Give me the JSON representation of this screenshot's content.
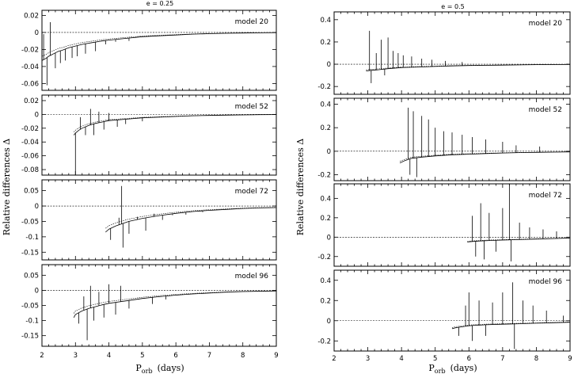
{
  "chart_data": [
    {
      "type": "line",
      "column_title": "e = 0.25",
      "xlabel_main": "P",
      "xlabel_sub": "orb",
      "xlabel_unit": "(days)",
      "ylabel": "Relative differences Δ",
      "xlim": [
        2,
        9
      ],
      "xticks": [
        2,
        3,
        4,
        5,
        6,
        7,
        8,
        9
      ],
      "panels": [
        {
          "model": "model 20",
          "ylim": [
            -0.068,
            0.026
          ],
          "yticks": [
            -0.06,
            -0.04,
            -0.02,
            0,
            0.02
          ],
          "ytick_labels": [
            "-0.06",
            "-0.04",
            "-0.02",
            "0",
            "0.02"
          ],
          "ref": 0,
          "series": {
            "x": [
              2.0,
              2.1,
              2.2,
              2.3,
              2.4,
              2.5,
              2.6,
              2.8,
              3.0,
              3.2,
              3.5,
              3.8,
              4.0,
              4.5,
              5.0,
              5.5,
              6.0,
              6.5,
              7.0,
              7.5,
              8.0,
              8.5,
              9.0
            ],
            "y": [
              -0.033,
              -0.031,
              -0.028,
              -0.026,
              -0.024,
              -0.022,
              -0.021,
              -0.018,
              -0.016,
              -0.014,
              -0.012,
              -0.01,
              -0.009,
              -0.007,
              -0.005,
              -0.004,
              -0.003,
              -0.002,
              -0.0015,
              -0.001,
              -0.0007,
              -0.0004,
              -0.0002
            ]
          },
          "spikes": [
            [
              2.05,
              -0.002
            ],
            [
              2.15,
              -0.062
            ],
            [
              2.25,
              0.012
            ],
            [
              2.4,
              -0.042
            ],
            [
              2.55,
              -0.036
            ],
            [
              2.7,
              -0.033
            ],
            [
              2.9,
              -0.03
            ],
            [
              3.05,
              -0.028
            ],
            [
              3.3,
              -0.025
            ],
            [
              3.6,
              -0.022
            ],
            [
              3.9,
              -0.014
            ],
            [
              4.2,
              -0.011
            ],
            [
              4.6,
              -0.01
            ]
          ]
        },
        {
          "model": "model 52",
          "ylim": [
            -0.088,
            0.028
          ],
          "yticks": [
            -0.08,
            -0.06,
            -0.04,
            -0.02,
            0,
            0.02
          ],
          "ytick_labels": [
            "-0.08",
            "-0.06",
            "-0.04",
            "-0.02",
            "0",
            "0.02"
          ],
          "ref": 0,
          "series": {
            "x": [
              2.95,
              3.0,
              3.1,
              3.2,
              3.4,
              3.6,
              3.8,
              4.0,
              4.5,
              5.0,
              5.5,
              6.0,
              6.5,
              7.0,
              7.5,
              8.0,
              8.5,
              9.0
            ],
            "y": [
              -0.03,
              -0.027,
              -0.023,
              -0.02,
              -0.016,
              -0.013,
              -0.011,
              -0.009,
              -0.007,
              -0.005,
              -0.004,
              -0.003,
              -0.002,
              -0.0015,
              -0.001,
              -0.0007,
              -0.0004,
              -0.0002
            ]
          },
          "spikes": [
            [
              3.0,
              -0.088
            ],
            [
              3.15,
              -0.004
            ],
            [
              3.3,
              -0.03
            ],
            [
              3.45,
              0.008
            ],
            [
              3.55,
              -0.03
            ],
            [
              3.7,
              0.004
            ],
            [
              3.85,
              -0.022
            ],
            [
              4.0,
              0.002
            ],
            [
              4.25,
              -0.018
            ],
            [
              4.5,
              -0.014
            ],
            [
              5.0,
              -0.01
            ]
          ]
        },
        {
          "model": "model 72",
          "ylim": [
            -0.175,
            0.085
          ],
          "yticks": [
            -0.15,
            -0.1,
            -0.05,
            0,
            0.05
          ],
          "ytick_labels": [
            "-0.15",
            "-0.1",
            "-0.05",
            "0",
            "0.05"
          ],
          "ref": 0,
          "series": {
            "x": [
              3.9,
              4.0,
              4.2,
              4.4,
              4.6,
              5.0,
              5.5,
              6.0,
              6.5,
              7.0,
              7.5,
              8.0,
              8.5,
              9.0
            ],
            "y": [
              -0.085,
              -0.075,
              -0.065,
              -0.057,
              -0.05,
              -0.04,
              -0.031,
              -0.024,
              -0.018,
              -0.014,
              -0.011,
              -0.008,
              -0.006,
              -0.005
            ]
          },
          "spikes": [
            [
              4.05,
              -0.11
            ],
            [
              4.3,
              -0.038
            ],
            [
              4.38,
              0.065
            ],
            [
              4.42,
              -0.135
            ],
            [
              4.6,
              -0.09
            ],
            [
              4.85,
              -0.035
            ],
            [
              5.1,
              -0.08
            ],
            [
              5.35,
              -0.025
            ],
            [
              5.6,
              -0.045
            ],
            [
              5.9,
              -0.03
            ],
            [
              6.3,
              -0.028
            ],
            [
              6.8,
              -0.02
            ]
          ]
        },
        {
          "model": "model 96",
          "ylim": [
            -0.185,
            0.085
          ],
          "yticks": [
            -0.15,
            -0.1,
            -0.05,
            0,
            0.05
          ],
          "ytick_labels": [
            "-0.15",
            "-0.1",
            "-0.05",
            "0",
            "0.05"
          ],
          "ref": 0,
          "series": {
            "x": [
              2.95,
              3.0,
              3.2,
              3.4,
              3.6,
              3.8,
              4.0,
              4.5,
              5.0,
              5.5,
              6.0,
              6.5,
              7.0,
              7.5,
              8.0,
              8.5,
              9.0
            ],
            "y": [
              -0.09,
              -0.08,
              -0.068,
              -0.06,
              -0.054,
              -0.048,
              -0.043,
              -0.035,
              -0.027,
              -0.021,
              -0.016,
              -0.012,
              -0.009,
              -0.006,
              -0.004,
              -0.003,
              -0.002
            ]
          },
          "spikes": [
            [
              3.1,
              -0.11
            ],
            [
              3.25,
              -0.02
            ],
            [
              3.35,
              -0.165
            ],
            [
              3.45,
              0.015
            ],
            [
              3.55,
              -0.1
            ],
            [
              3.7,
              -0.005
            ],
            [
              3.85,
              -0.09
            ],
            [
              4.0,
              0.02
            ],
            [
              4.2,
              -0.08
            ],
            [
              4.35,
              0.015
            ],
            [
              4.6,
              -0.06
            ],
            [
              4.9,
              -0.03
            ],
            [
              5.3,
              -0.045
            ],
            [
              5.7,
              -0.03
            ]
          ]
        }
      ]
    },
    {
      "type": "line",
      "column_title": "e = 0.5",
      "xlabel_main": "P",
      "xlabel_sub": "orb",
      "xlabel_unit": "(days)",
      "ylabel": "Relative differences Δ",
      "xlim": [
        2,
        9
      ],
      "xticks": [
        2,
        3,
        4,
        5,
        6,
        7,
        8,
        9
      ],
      "panels": [
        {
          "model": "model 20",
          "ylim": [
            -0.27,
            0.47
          ],
          "yticks": [
            -0.2,
            0,
            0.2,
            0.4
          ],
          "ytick_labels": [
            "-0.2",
            "0",
            "0.2",
            "0.4"
          ],
          "ref": 0,
          "series": {
            "x": [
              2.95,
              3.1,
              3.3,
              3.6,
              4.0,
              4.5,
              5.0,
              5.5,
              6.0,
              6.5,
              7.0,
              7.5,
              8.0,
              8.5,
              9.0
            ],
            "y": [
              -0.06,
              -0.055,
              -0.05,
              -0.04,
              -0.03,
              -0.025,
              -0.02,
              -0.015,
              -0.012,
              -0.01,
              -0.008,
              -0.006,
              -0.004,
              -0.003,
              -0.002
            ]
          },
          "spikes": [
            [
              3.05,
              0.3
            ],
            [
              3.1,
              -0.17
            ],
            [
              3.25,
              0.1
            ],
            [
              3.4,
              0.22
            ],
            [
              3.5,
              -0.1
            ],
            [
              3.6,
              0.24
            ],
            [
              3.75,
              0.12
            ],
            [
              3.9,
              0.1
            ],
            [
              4.05,
              0.08
            ],
            [
              4.3,
              0.07
            ],
            [
              4.6,
              0.05
            ],
            [
              4.9,
              0.04
            ],
            [
              5.3,
              0.03
            ],
            [
              5.8,
              0.02
            ]
          ]
        },
        {
          "model": "model 52",
          "ylim": [
            -0.25,
            0.45
          ],
          "yticks": [
            -0.2,
            0,
            0.2,
            0.4
          ],
          "ytick_labels": [
            "-0.2",
            "0",
            "0.2",
            "0.4"
          ],
          "ref": 0,
          "series": {
            "x": [
              3.95,
              4.1,
              4.3,
              4.6,
              5.0,
              5.5,
              6.0,
              6.5,
              7.0,
              7.5,
              8.0,
              8.5,
              9.0
            ],
            "y": [
              -0.1,
              -0.08,
              -0.06,
              -0.05,
              -0.04,
              -0.03,
              -0.025,
              -0.02,
              -0.015,
              -0.012,
              -0.01,
              -0.008,
              -0.006
            ]
          },
          "spikes": [
            [
              4.2,
              0.37
            ],
            [
              4.25,
              -0.2
            ],
            [
              4.35,
              0.34
            ],
            [
              4.45,
              -0.22
            ],
            [
              4.6,
              0.3
            ],
            [
              4.8,
              0.27
            ],
            [
              5.0,
              0.2
            ],
            [
              5.25,
              0.17
            ],
            [
              5.5,
              0.16
            ],
            [
              5.8,
              0.14
            ],
            [
              6.1,
              0.12
            ],
            [
              6.5,
              0.1
            ],
            [
              7.0,
              0.08
            ],
            [
              7.4,
              0.05
            ],
            [
              8.1,
              0.04
            ]
          ]
        },
        {
          "model": "model 72",
          "ylim": [
            -0.3,
            0.55
          ],
          "yticks": [
            -0.2,
            0,
            0.2,
            0.4
          ],
          "ytick_labels": [
            "-0.2",
            "0",
            "0.2",
            "0.4"
          ],
          "ref": 0,
          "series": {
            "x": [
              5.95,
              6.1,
              6.3,
              6.6,
              7.0,
              7.5,
              8.0,
              8.5,
              9.0
            ],
            "y": [
              -0.05,
              -0.045,
              -0.04,
              -0.035,
              -0.03,
              -0.025,
              -0.02,
              -0.015,
              -0.01
            ]
          },
          "spikes": [
            [
              6.1,
              0.22
            ],
            [
              6.2,
              -0.2
            ],
            [
              6.35,
              0.35
            ],
            [
              6.45,
              -0.23
            ],
            [
              6.6,
              0.25
            ],
            [
              6.8,
              -0.15
            ],
            [
              7.0,
              0.3
            ],
            [
              7.2,
              0.55
            ],
            [
              7.25,
              -0.25
            ],
            [
              7.5,
              0.15
            ],
            [
              7.8,
              0.1
            ],
            [
              8.2,
              0.08
            ],
            [
              8.6,
              0.06
            ]
          ]
        },
        {
          "model": "model 96",
          "ylim": [
            -0.3,
            0.5
          ],
          "yticks": [
            -0.2,
            0,
            0.2,
            0.4
          ],
          "ytick_labels": [
            "-0.2",
            "0",
            "0.2",
            "0.4"
          ],
          "ref": 0,
          "series": {
            "x": [
              5.5,
              5.6,
              5.8,
              6.0,
              6.5,
              7.0,
              7.5,
              8.0,
              8.5,
              9.0
            ],
            "y": [
              -0.08,
              -0.07,
              -0.06,
              -0.05,
              -0.04,
              -0.035,
              -0.03,
              -0.025,
              -0.02,
              -0.015
            ]
          },
          "spikes": [
            [
              5.7,
              -0.15
            ],
            [
              5.9,
              0.15
            ],
            [
              6.0,
              0.28
            ],
            [
              6.1,
              -0.2
            ],
            [
              6.3,
              0.2
            ],
            [
              6.5,
              -0.15
            ],
            [
              6.7,
              0.18
            ],
            [
              7.0,
              0.28
            ],
            [
              7.3,
              0.38
            ],
            [
              7.35,
              -0.28
            ],
            [
              7.6,
              0.2
            ],
            [
              7.9,
              0.15
            ],
            [
              8.3,
              0.1
            ],
            [
              8.8,
              0.05
            ]
          ]
        }
      ]
    }
  ]
}
